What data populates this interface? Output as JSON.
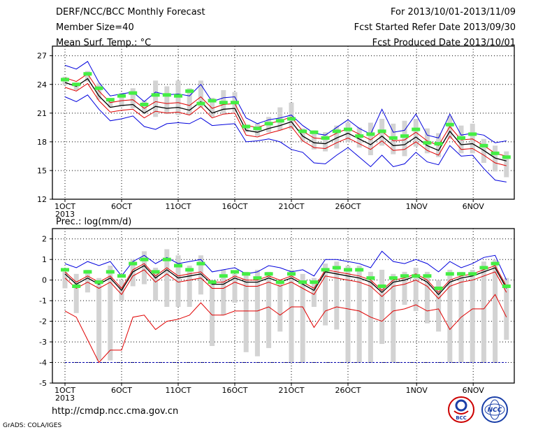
{
  "header": {
    "title": "DERF/NCC/BCC Monthly Forecast",
    "member_size": "Member Size=40",
    "variable": "Mean Surf. Temp.: °C",
    "period": "For 2013/10/01-2013/11/09",
    "refer_date": "Fcst Started Refer Date 2013/09/30",
    "produced_date": "Fcst Produced Date 2013/10/01"
  },
  "footer": {
    "url": "http://cmdp.ncc.cma.gov.cn",
    "grads": "GrADS: COLA/IGES"
  },
  "logos": {
    "left_text": "BCC",
    "right_text": "NCC"
  },
  "colors": {
    "mean": "#000000",
    "spread": "#e00000",
    "envelope": "#0000dd",
    "box": "#d3d3d3",
    "marker": "#44ee44",
    "floor_line": "#0000aa"
  },
  "chart_data": [
    {
      "type": "line",
      "title": "Mean Surf. Temp.: °C",
      "x_tick_labels": [
        "1OCT",
        "6OCT",
        "11OCT",
        "16OCT",
        "21OCT",
        "26OCT",
        "1NOV",
        "6NOV"
      ],
      "x_tick_index": [
        0,
        5,
        10,
        15,
        20,
        25,
        31,
        36
      ],
      "x_sublabel": "2013",
      "ylim": [
        12,
        28
      ],
      "y_ticks": [
        12,
        15,
        18,
        21,
        24,
        27
      ],
      "grid": true,
      "series": [
        {
          "role": "mean",
          "values": [
            24.2,
            23.8,
            24.6,
            22.8,
            21.6,
            21.8,
            21.9,
            21.0,
            21.7,
            21.5,
            21.6,
            21.3,
            22.2,
            21.0,
            21.4,
            21.5,
            19.2,
            19.0,
            19.4,
            19.7,
            20.1,
            18.6,
            17.9,
            17.8,
            18.4,
            18.9,
            18.3,
            17.7,
            18.6,
            17.6,
            17.7,
            18.5,
            17.6,
            17.1,
            19.1,
            17.7,
            17.8,
            17.1,
            16.3,
            16.0
          ]
        },
        {
          "role": "upper",
          "values": [
            24.7,
            24.3,
            25.1,
            23.3,
            22.1,
            22.3,
            22.4,
            21.5,
            22.2,
            22.0,
            22.1,
            21.8,
            22.7,
            21.5,
            21.9,
            22.0,
            19.7,
            19.5,
            19.9,
            20.2,
            20.6,
            19.1,
            18.4,
            18.3,
            18.9,
            19.4,
            18.8,
            18.2,
            19.1,
            18.1,
            18.2,
            19.0,
            18.1,
            17.6,
            19.6,
            18.2,
            18.3,
            17.6,
            16.8,
            16.5
          ]
        },
        {
          "role": "lower",
          "values": [
            23.7,
            23.3,
            24.1,
            22.3,
            21.1,
            21.3,
            21.4,
            20.5,
            21.2,
            21.0,
            21.1,
            20.8,
            21.7,
            20.5,
            20.9,
            21.0,
            18.7,
            18.5,
            18.9,
            19.2,
            19.6,
            18.1,
            17.4,
            17.3,
            17.9,
            18.4,
            17.8,
            17.2,
            18.1,
            17.1,
            17.2,
            18.0,
            17.1,
            16.6,
            18.6,
            17.2,
            17.3,
            16.6,
            15.8,
            15.5
          ]
        },
        {
          "role": "max",
          "values": [
            26.0,
            25.6,
            26.4,
            24.2,
            22.8,
            23.0,
            23.2,
            22.2,
            23.2,
            22.9,
            23.0,
            22.8,
            24.0,
            22.2,
            22.6,
            22.7,
            20.5,
            19.9,
            20.3,
            20.5,
            20.8,
            19.7,
            18.9,
            18.7,
            19.5,
            20.3,
            19.4,
            18.8,
            21.4,
            19.0,
            19.2,
            20.9,
            18.7,
            18.4,
            20.9,
            18.7,
            18.9,
            18.7,
            17.9,
            18.1
          ]
        },
        {
          "role": "min",
          "values": [
            22.7,
            22.2,
            22.9,
            21.4,
            20.2,
            20.4,
            20.7,
            19.6,
            19.3,
            19.9,
            20.0,
            19.9,
            20.5,
            19.7,
            19.8,
            19.9,
            18.0,
            18.1,
            18.3,
            18.0,
            17.2,
            16.9,
            15.8,
            15.7,
            16.6,
            17.4,
            16.4,
            15.4,
            16.6,
            15.4,
            15.7,
            16.9,
            15.9,
            15.6,
            17.6,
            16.5,
            16.6,
            15.2,
            14.0,
            13.8
          ]
        },
        {
          "role": "marker",
          "values": [
            24.5,
            24.0,
            25.1,
            23.6,
            22.4,
            22.8,
            23.1,
            21.9,
            22.9,
            22.9,
            22.8,
            23.3,
            22.0,
            22.3,
            22.1,
            22.1,
            19.6,
            19.4,
            19.9,
            20.2,
            20.4,
            19.1,
            19.0,
            18.4,
            19.1,
            19.3,
            18.6,
            18.8,
            19.1,
            18.4,
            18.6,
            19.3,
            17.9,
            17.8,
            19.8,
            18.4,
            18.8,
            17.6,
            16.8,
            16.4
          ]
        },
        {
          "role": "box_high",
          "values": [
            24.8,
            24.2,
            25.4,
            24.1,
            22.5,
            23.1,
            23.6,
            22.3,
            24.4,
            23.8,
            24.4,
            23.6,
            24.4,
            22.6,
            23.4,
            23.2,
            19.8,
            19.9,
            20.6,
            21.6,
            22.1,
            19.4,
            19.2,
            19.0,
            19.7,
            20.0,
            19.5,
            20.0,
            20.4,
            19.9,
            20.2,
            20.4,
            19.4,
            18.9,
            20.7,
            19.7,
            19.9,
            18.3,
            17.6,
            17.0
          ]
        },
        {
          "role": "box_low",
          "values": [
            23.9,
            23.4,
            24.3,
            22.4,
            21.6,
            21.7,
            21.5,
            20.9,
            20.6,
            20.9,
            20.8,
            20.8,
            21.6,
            20.6,
            20.9,
            21.1,
            19.0,
            18.6,
            19.0,
            19.2,
            19.3,
            18.0,
            17.2,
            17.0,
            17.3,
            18.0,
            17.4,
            16.6,
            17.6,
            16.7,
            16.5,
            17.5,
            16.8,
            16.4,
            18.3,
            16.8,
            16.8,
            15.8,
            14.9,
            14.3
          ]
        }
      ]
    },
    {
      "type": "line",
      "title": "Prec.: log(mm/d)",
      "x_tick_labels": [
        "1OCT",
        "6OCT",
        "11OCT",
        "16OCT",
        "21OCT",
        "26OCT",
        "1NOV",
        "6NOV"
      ],
      "x_tick_index": [
        0,
        5,
        10,
        15,
        20,
        25,
        31,
        36
      ],
      "x_sublabel": "2013",
      "ylim": [
        -5,
        2.5
      ],
      "y_ticks": [
        -5,
        -4,
        -3,
        -2,
        -1,
        0,
        1,
        2
      ],
      "grid": true,
      "series": [
        {
          "role": "mean",
          "values": [
            0.3,
            -0.2,
            0.1,
            -0.2,
            0.1,
            -0.5,
            0.4,
            0.7,
            0.1,
            0.5,
            0.1,
            0.2,
            0.3,
            -0.2,
            -0.2,
            0.1,
            -0.1,
            -0.1,
            0.1,
            -0.1,
            0.1,
            -0.2,
            -0.5,
            0.4,
            0.3,
            0.2,
            0.1,
            -0.1,
            -0.6,
            -0.1,
            0.0,
            0.2,
            -0.1,
            -0.7,
            -0.1,
            0.1,
            0.2,
            0.4,
            0.6,
            -0.4
          ]
        },
        {
          "role": "upper",
          "values": [
            0.4,
            -0.1,
            0.2,
            -0.1,
            0.2,
            -0.4,
            0.5,
            0.8,
            0.2,
            0.6,
            0.2,
            0.3,
            0.4,
            -0.1,
            -0.1,
            0.2,
            0.0,
            0.0,
            0.2,
            0.0,
            0.2,
            -0.1,
            -0.4,
            0.5,
            0.4,
            0.3,
            0.2,
            0.0,
            -0.5,
            0.0,
            0.1,
            0.3,
            0.0,
            -0.6,
            0.0,
            0.2,
            0.3,
            0.5,
            0.7,
            -0.3
          ]
        },
        {
          "role": "lower",
          "values": [
            0.1,
            -0.4,
            -0.1,
            -0.4,
            -0.1,
            -0.7,
            0.2,
            0.5,
            -0.1,
            0.3,
            -0.1,
            0.0,
            0.1,
            -0.4,
            -0.4,
            -0.1,
            -0.3,
            -0.3,
            -0.1,
            -0.3,
            -0.1,
            -0.4,
            -0.7,
            0.2,
            0.1,
            0.0,
            -0.1,
            -0.3,
            -0.8,
            -0.3,
            -0.2,
            0.0,
            -0.3,
            -0.9,
            -0.3,
            -0.1,
            0.0,
            0.2,
            0.4,
            -0.6
          ]
        },
        {
          "role": "max",
          "values": [
            0.8,
            0.6,
            0.9,
            0.7,
            0.9,
            0.2,
            0.9,
            1.2,
            0.8,
            1.1,
            0.8,
            0.9,
            1.0,
            0.4,
            0.5,
            0.6,
            0.3,
            0.4,
            0.7,
            0.6,
            0.4,
            0.5,
            0.2,
            1.0,
            1.0,
            0.9,
            0.8,
            0.6,
            1.4,
            0.9,
            0.8,
            1.0,
            0.8,
            0.4,
            0.9,
            0.6,
            0.8,
            1.1,
            1.2,
            0.0
          ]
        },
        {
          "role": "min",
          "values": [
            -1.5,
            -1.8,
            -2.9,
            -4.0,
            -3.4,
            -3.4,
            -1.8,
            -1.7,
            -2.4,
            -2.0,
            -1.9,
            -1.7,
            -1.1,
            -1.7,
            -1.7,
            -1.5,
            -1.5,
            -1.5,
            -1.3,
            -1.7,
            -1.3,
            -1.3,
            -2.3,
            -1.5,
            -1.3,
            -1.4,
            -1.5,
            -1.8,
            -2.0,
            -1.5,
            -1.4,
            -1.2,
            -1.5,
            -1.4,
            -2.4,
            -1.8,
            -1.4,
            -1.4,
            -0.7,
            -1.8
          ]
        },
        {
          "role": "marker",
          "values": [
            0.5,
            -0.3,
            0.4,
            -0.1,
            0.4,
            0.2,
            0.8,
            1.0,
            0.4,
            1.0,
            0.7,
            0.5,
            0.8,
            -0.1,
            0.2,
            0.4,
            0.3,
            0.1,
            0.3,
            -0.1,
            0.3,
            -0.1,
            -0.1,
            0.5,
            0.6,
            0.5,
            0.5,
            0.1,
            -0.3,
            0.1,
            0.2,
            0.2,
            0.2,
            -0.4,
            0.3,
            0.3,
            0.3,
            0.6,
            0.8,
            -0.3
          ]
        },
        {
          "role": "box_high",
          "values": [
            0.4,
            0.3,
            0.5,
            0.1,
            0.7,
            0.0,
            1.0,
            1.4,
            0.6,
            1.5,
            1.2,
            0.7,
            1.2,
            0.0,
            0.5,
            0.3,
            0.4,
            0.5,
            0.4,
            0.0,
            0.5,
            0.3,
            0.1,
            0.8,
            0.9,
            0.7,
            0.7,
            0.4,
            0.5,
            0.3,
            0.4,
            0.6,
            0.4,
            0.0,
            0.5,
            0.4,
            0.5,
            0.9,
            1.0,
            0.1
          ]
        },
        {
          "role": "box_low",
          "values": [
            -0.4,
            -1.6,
            -0.6,
            -3.9,
            -3.9,
            -1.0,
            -0.3,
            -0.2,
            -1.0,
            -1.3,
            -1.3,
            -1.3,
            -0.7,
            -3.2,
            -1.7,
            -1.1,
            -3.5,
            -3.7,
            -3.3,
            -2.5,
            -4.0,
            -4.0,
            -1.3,
            -2.2,
            -2.4,
            -4.0,
            -4.0,
            -4.0,
            -3.1,
            -4.0,
            -1.2,
            -1.5,
            -2.1,
            -2.5,
            -4.0,
            -4.0,
            -4.0,
            -4.0,
            -4.0,
            -2.9
          ]
        },
        {
          "role": "floor",
          "values": [
            -4.0
          ]
        }
      ]
    }
  ]
}
